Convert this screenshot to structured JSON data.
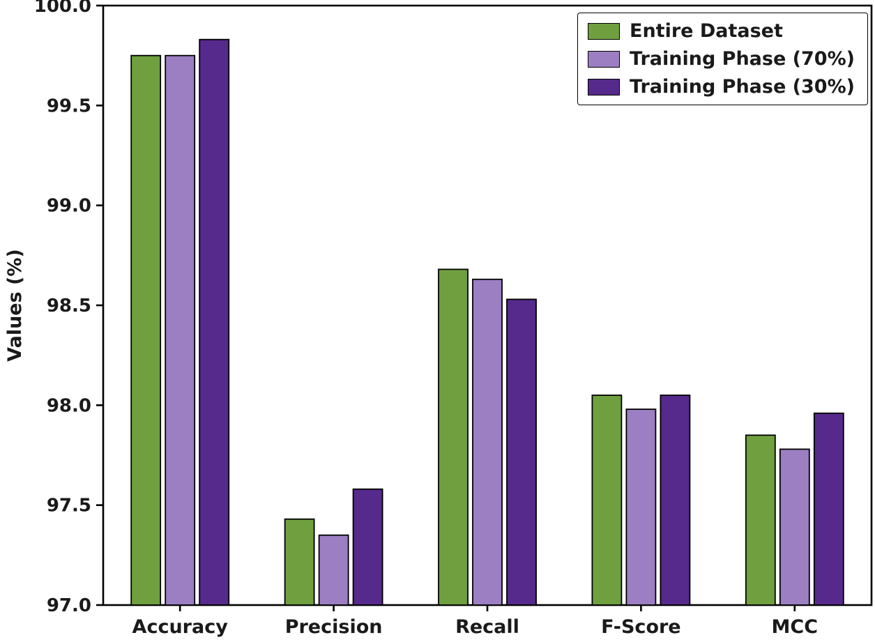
{
  "chart_data": {
    "type": "bar",
    "title": "",
    "xlabel": "",
    "ylabel": "Values (%)",
    "ylim": [
      97.0,
      100.0
    ],
    "ytick_step": 0.5,
    "yticks": [
      "97.0",
      "97.5",
      "98.0",
      "98.5",
      "99.0",
      "99.5",
      "100.0"
    ],
    "categories": [
      "Accuracy",
      "Precision",
      "Recall",
      "F-Score",
      "MCC"
    ],
    "series": [
      {
        "name": "Entire Dataset",
        "color": "#6f9f3f",
        "values": [
          99.75,
          97.43,
          98.68,
          98.05,
          97.85
        ]
      },
      {
        "name": "Training Phase (70%)",
        "color": "#9b7fc2",
        "values": [
          99.75,
          97.35,
          98.63,
          97.98,
          97.78
        ]
      },
      {
        "name": "Training Phase (30%)",
        "color": "#56298c",
        "values": [
          99.83,
          97.58,
          98.53,
          98.05,
          97.96
        ]
      }
    ],
    "legend_position": "upper right",
    "grid": false,
    "bar_edge_color": "#000000",
    "axis_color": "#000000",
    "text_color": "#1a1a1a"
  }
}
